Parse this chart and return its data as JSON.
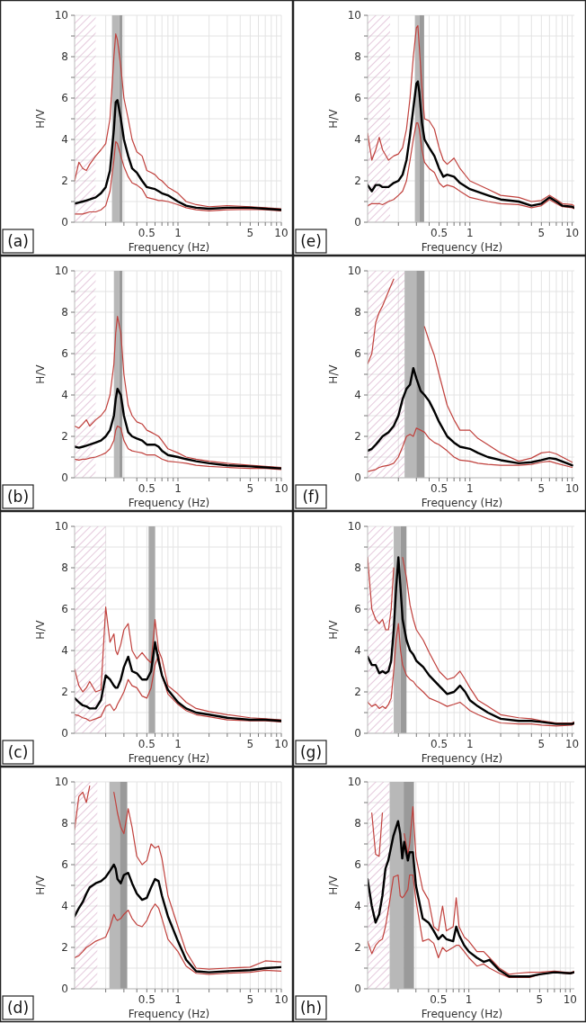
{
  "chart_data": [
    {
      "type": "line",
      "title": "(a)",
      "xlabel": "Frequency (Hz)",
      "ylabel": "H/V",
      "log": "x",
      "grid": true,
      "xlim": [
        0.1,
        10
      ],
      "ylim": [
        0,
        10
      ],
      "xticks": [
        {
          "value": 0.2,
          "label": null
        },
        {
          "value": 0.3,
          "label": null
        },
        {
          "value": 0.4,
          "label": null
        },
        0.5,
        {
          "value": 0.6,
          "label": null
        },
        {
          "value": 0.7,
          "label": null
        },
        {
          "value": 0.8,
          "label": null
        },
        {
          "value": 0.9,
          "label": null
        },
        1,
        {
          "value": 2,
          "label": null
        },
        {
          "value": 3,
          "label": null
        },
        {
          "value": 4,
          "label": null
        },
        5,
        {
          "value": 6,
          "label": null
        },
        {
          "value": 7,
          "label": null
        },
        {
          "value": 8,
          "label": null
        },
        {
          "value": 9,
          "label": null
        },
        10
      ],
      "yticks": [
        0,
        {
          "value": 1,
          "label": null
        },
        2,
        {
          "value": 3,
          "label": null
        },
        4,
        {
          "value": 5,
          "label": null
        },
        6,
        {
          "value": 7,
          "label": null
        },
        8,
        {
          "value": 9,
          "label": null
        },
        10
      ],
      "bands": [
        {
          "axis": "x",
          "from": 0.1,
          "to": 0.16,
          "label": null,
          "color": "#d4a5c4"
        },
        {
          "axis": "x",
          "from": 0.23,
          "to": 0.27,
          "label": null,
          "color": "#b8b8b8"
        },
        {
          "axis": "x",
          "from": 0.27,
          "to": 0.29,
          "label": null,
          "color": "#9a9a9a"
        }
      ],
      "x": [
        0.1,
        0.11,
        0.12,
        0.13,
        0.14,
        0.16,
        0.18,
        0.2,
        0.22,
        0.24,
        0.25,
        0.26,
        0.28,
        0.3,
        0.33,
        0.36,
        0.4,
        0.45,
        0.5,
        0.55,
        0.6,
        0.65,
        0.7,
        0.8,
        1,
        1.2,
        1.5,
        2,
        3,
        5,
        7,
        10
      ],
      "series": [
        {
          "color": "#c0403c",
          "values": [
            2.0,
            2.9,
            2.6,
            2.5,
            2.8,
            3.2,
            3.5,
            3.8,
            5.0,
            8.0,
            9.1,
            8.8,
            7.5,
            6.0,
            5.0,
            4.0,
            3.4,
            3.2,
            2.5,
            2.4,
            2.3,
            2.1,
            2.0,
            1.7,
            1.4,
            1.0,
            0.85,
            0.75,
            0.8,
            0.75,
            0.7,
            0.65
          ]
        },
        {
          "color": "#c0403c",
          "values": [
            0.4,
            0.4,
            0.4,
            0.45,
            0.5,
            0.5,
            0.6,
            0.8,
            1.5,
            3.0,
            3.9,
            3.8,
            3.2,
            2.7,
            2.2,
            1.9,
            1.8,
            1.6,
            1.2,
            1.15,
            1.1,
            1.05,
            1.05,
            1.0,
            0.85,
            0.7,
            0.6,
            0.55,
            0.6,
            0.62,
            0.6,
            0.55
          ]
        },
        {
          "color": "#000000",
          "values": [
            0.9,
            0.95,
            1.0,
            1.05,
            1.1,
            1.2,
            1.4,
            1.7,
            2.5,
            4.5,
            5.8,
            5.9,
            5.0,
            4.0,
            3.2,
            2.6,
            2.4,
            2.0,
            1.7,
            1.65,
            1.6,
            1.5,
            1.4,
            1.3,
            1.0,
            0.8,
            0.7,
            0.65,
            0.7,
            0.7,
            0.65,
            0.6
          ]
        }
      ]
    },
    {
      "type": "line",
      "title": "(e)",
      "xlabel": "Frequency (Hz)",
      "ylabel": "H/V",
      "log": "x",
      "grid": true,
      "xlim": [
        0.1,
        10.5
      ],
      "ylim": [
        0,
        10
      ],
      "xticks": [
        {
          "value": 0.2,
          "label": null
        },
        {
          "value": 0.3,
          "label": null
        },
        {
          "value": 0.4,
          "label": null
        },
        0.5,
        {
          "value": 0.6,
          "label": null
        },
        {
          "value": 0.7,
          "label": null
        },
        {
          "value": 0.8,
          "label": null
        },
        {
          "value": 0.9,
          "label": null
        },
        1,
        {
          "value": 2,
          "label": null
        },
        {
          "value": 3,
          "label": null
        },
        {
          "value": 4,
          "label": null
        },
        5,
        {
          "value": 6,
          "label": null
        },
        {
          "value": 7,
          "label": null
        },
        {
          "value": 8,
          "label": null
        },
        {
          "value": 9,
          "label": null
        },
        10
      ],
      "yticks": [
        0,
        {
          "value": 1,
          "label": null
        },
        2,
        {
          "value": 3,
          "label": null
        },
        4,
        {
          "value": 5,
          "label": null
        },
        6,
        {
          "value": 7,
          "label": null
        },
        8,
        {
          "value": 9,
          "label": null
        },
        10
      ],
      "bands": [
        {
          "axis": "x",
          "from": 0.1,
          "to": 0.166,
          "label": null,
          "color": "#d4a5c4"
        },
        {
          "axis": "x",
          "from": 0.29,
          "to": 0.32,
          "label": null,
          "color": "#b8b8b8"
        },
        {
          "axis": "x",
          "from": 0.32,
          "to": 0.357,
          "label": null,
          "color": "#9a9a9a"
        }
      ],
      "x": [
        0.1,
        0.11,
        0.12,
        0.13,
        0.14,
        0.16,
        0.18,
        0.2,
        0.22,
        0.24,
        0.26,
        0.28,
        0.3,
        0.31,
        0.32,
        0.34,
        0.36,
        0.4,
        0.45,
        0.5,
        0.55,
        0.6,
        0.7,
        0.8,
        1,
        1.5,
        2,
        3,
        4,
        5,
        6,
        7,
        8,
        10,
        10.5
      ],
      "series": [
        {
          "color": "#c0403c",
          "values": [
            4.3,
            3.0,
            3.5,
            4.1,
            3.5,
            3.0,
            3.2,
            3.3,
            3.6,
            4.5,
            6.0,
            8.0,
            9.4,
            9.5,
            8.5,
            6.5,
            5.0,
            4.9,
            4.5,
            3.6,
            3.0,
            2.8,
            3.1,
            2.6,
            2.0,
            1.6,
            1.3,
            1.2,
            1.0,
            1.05,
            1.3,
            1.1,
            0.9,
            0.85,
            0.8
          ]
        },
        {
          "color": "#c0403c",
          "values": [
            0.8,
            0.9,
            0.9,
            0.9,
            0.85,
            1.0,
            1.1,
            1.3,
            1.5,
            2.0,
            3.0,
            4.0,
            4.8,
            4.8,
            4.5,
            3.5,
            2.9,
            2.6,
            2.4,
            1.9,
            1.7,
            1.8,
            1.7,
            1.5,
            1.2,
            1.0,
            0.9,
            0.85,
            0.7,
            0.8,
            1.1,
            0.9,
            0.75,
            0.7,
            0.65
          ]
        },
        {
          "color": "#000000",
          "values": [
            1.8,
            1.5,
            1.8,
            1.8,
            1.7,
            1.7,
            1.9,
            2.0,
            2.3,
            3.0,
            4.2,
            5.5,
            6.7,
            6.8,
            6.3,
            4.8,
            4.0,
            3.6,
            3.2,
            2.6,
            2.2,
            2.3,
            2.2,
            1.9,
            1.6,
            1.3,
            1.1,
            1.0,
            0.8,
            0.9,
            1.2,
            1.0,
            0.8,
            0.75,
            0.7
          ]
        }
      ]
    },
    {
      "type": "line",
      "title": "(b)",
      "xlabel": "Frequency (Hz)",
      "ylabel": "H/V",
      "log": "x",
      "grid": true,
      "xlim": [
        0.1,
        10
      ],
      "ylim": [
        0,
        10
      ],
      "xticks": [
        {
          "value": 0.2,
          "label": null
        },
        {
          "value": 0.3,
          "label": null
        },
        {
          "value": 0.4,
          "label": null
        },
        0.5,
        {
          "value": 0.6,
          "label": null
        },
        {
          "value": 0.7,
          "label": null
        },
        {
          "value": 0.8,
          "label": null
        },
        {
          "value": 0.9,
          "label": null
        },
        1,
        {
          "value": 2,
          "label": null
        },
        {
          "value": 3,
          "label": null
        },
        {
          "value": 4,
          "label": null
        },
        5,
        {
          "value": 6,
          "label": null
        },
        {
          "value": 7,
          "label": null
        },
        {
          "value": 8,
          "label": null
        },
        {
          "value": 9,
          "label": null
        },
        10
      ],
      "yticks": [
        0,
        {
          "value": 1,
          "label": null
        },
        2,
        {
          "value": 3,
          "label": null
        },
        4,
        {
          "value": 5,
          "label": null
        },
        6,
        {
          "value": 7,
          "label": null
        },
        8,
        {
          "value": 9,
          "label": null
        },
        10
      ],
      "bands": [
        {
          "axis": "x",
          "from": 0.1,
          "to": 0.16,
          "label": null,
          "color": "#d4a5c4"
        },
        {
          "axis": "x",
          "from": 0.24,
          "to": 0.27,
          "label": null,
          "color": "#b8b8b8"
        },
        {
          "axis": "x",
          "from": 0.27,
          "to": 0.29,
          "label": null,
          "color": "#9a9a9a"
        }
      ],
      "x": [
        0.1,
        0.11,
        0.12,
        0.13,
        0.14,
        0.16,
        0.18,
        0.2,
        0.22,
        0.24,
        0.25,
        0.26,
        0.28,
        0.3,
        0.33,
        0.36,
        0.4,
        0.45,
        0.5,
        0.55,
        0.6,
        0.65,
        0.7,
        0.8,
        1,
        1.2,
        1.5,
        2,
        3,
        5,
        7,
        10
      ],
      "series": [
        {
          "color": "#c0403c",
          "values": [
            2.5,
            2.4,
            2.6,
            2.8,
            2.5,
            2.8,
            3.0,
            3.3,
            4.0,
            5.5,
            7.0,
            7.8,
            7.0,
            5.0,
            3.5,
            3.0,
            2.7,
            2.6,
            2.3,
            2.2,
            2.1,
            2.0,
            1.8,
            1.4,
            1.2,
            1.0,
            0.9,
            0.8,
            0.7,
            0.6,
            0.55,
            0.5
          ]
        },
        {
          "color": "#c0403c",
          "values": [
            0.9,
            0.85,
            0.9,
            0.9,
            0.95,
            1.0,
            1.1,
            1.2,
            1.4,
            1.8,
            2.3,
            2.5,
            2.4,
            1.8,
            1.4,
            1.3,
            1.25,
            1.2,
            1.1,
            1.1,
            1.1,
            1.0,
            0.9,
            0.8,
            0.75,
            0.7,
            0.6,
            0.55,
            0.5,
            0.45,
            0.45,
            0.4
          ]
        },
        {
          "color": "#000000",
          "values": [
            1.5,
            1.45,
            1.5,
            1.55,
            1.6,
            1.7,
            1.8,
            2.0,
            2.3,
            3.0,
            3.8,
            4.3,
            4.0,
            3.0,
            2.2,
            2.0,
            1.9,
            1.8,
            1.6,
            1.6,
            1.6,
            1.5,
            1.3,
            1.1,
            1.0,
            0.9,
            0.8,
            0.7,
            0.6,
            0.55,
            0.5,
            0.45
          ]
        }
      ]
    },
    {
      "type": "line",
      "title": "(f)",
      "xlabel": "Frequency (Hz)",
      "ylabel": "H/V",
      "log": "x",
      "grid": true,
      "xlim": [
        0.1,
        10.5
      ],
      "ylim": [
        0,
        10
      ],
      "xticks": [
        {
          "value": 0.2,
          "label": null
        },
        {
          "value": 0.3,
          "label": null
        },
        {
          "value": 0.4,
          "label": null
        },
        0.5,
        {
          "value": 0.6,
          "label": null
        },
        {
          "value": 0.7,
          "label": null
        },
        {
          "value": 0.8,
          "label": null
        },
        {
          "value": 0.9,
          "label": null
        },
        1,
        {
          "value": 2,
          "label": null
        },
        {
          "value": 3,
          "label": null
        },
        {
          "value": 4,
          "label": null
        },
        5,
        {
          "value": 6,
          "label": null
        },
        {
          "value": 7,
          "label": null
        },
        {
          "value": 8,
          "label": null
        },
        {
          "value": 9,
          "label": null
        },
        10
      ],
      "yticks": [
        0,
        {
          "value": 1,
          "label": null
        },
        2,
        {
          "value": 3,
          "label": null
        },
        4,
        {
          "value": 5,
          "label": null
        },
        6,
        {
          "value": 7,
          "label": null
        },
        8,
        {
          "value": 9,
          "label": null
        },
        10
      ],
      "bands": [
        {
          "axis": "x",
          "from": 0.1,
          "to": 0.23,
          "label": null,
          "color": "#d4a5c4"
        },
        {
          "axis": "x",
          "from": 0.23,
          "to": 0.3,
          "label": null,
          "color": "#b8b8b8"
        },
        {
          "axis": "x",
          "from": 0.3,
          "to": 0.36,
          "label": null,
          "color": "#9a9a9a"
        }
      ],
      "x": [
        0.1,
        0.11,
        0.12,
        0.13,
        0.14,
        0.16,
        0.18,
        0.2,
        0.22,
        0.24,
        0.26,
        0.28,
        0.3,
        0.33,
        0.36,
        0.4,
        0.45,
        0.5,
        0.6,
        0.7,
        0.8,
        1,
        1.2,
        1.5,
        2,
        3,
        4,
        5,
        6,
        7,
        10
      ],
      "series": [
        {
          "color": "#c0403c",
          "values": [
            5.5,
            6.0,
            7.5,
            8.0,
            8.3,
            9.0,
            9.6,
            null,
            null,
            null,
            null,
            null,
            null,
            null,
            7.3,
            6.6,
            5.9,
            5.0,
            3.5,
            2.8,
            2.3,
            2.3,
            1.9,
            1.6,
            1.2,
            0.8,
            0.95,
            1.2,
            1.25,
            1.15,
            0.75
          ]
        },
        {
          "color": "#c0403c",
          "values": [
            0.3,
            0.35,
            0.4,
            0.5,
            0.55,
            0.6,
            0.7,
            1.0,
            1.5,
            2.0,
            2.1,
            2.0,
            2.4,
            2.3,
            2.2,
            1.9,
            1.7,
            1.6,
            1.3,
            1.0,
            0.85,
            0.8,
            0.7,
            0.65,
            0.6,
            0.6,
            0.65,
            0.75,
            0.8,
            0.7,
            0.5
          ]
        },
        {
          "color": "#000000",
          "values": [
            1.3,
            1.4,
            1.6,
            1.8,
            2.0,
            2.2,
            2.5,
            3.0,
            3.8,
            4.3,
            4.5,
            5.3,
            4.8,
            4.2,
            4.0,
            3.7,
            3.2,
            2.7,
            2.0,
            1.7,
            1.5,
            1.4,
            1.2,
            1.0,
            0.85,
            0.7,
            0.75,
            0.85,
            0.95,
            0.9,
            0.6
          ]
        }
      ]
    },
    {
      "type": "line",
      "title": "(c)",
      "xlabel": "Frequency (Hz)",
      "ylabel": "H/V",
      "log": "x",
      "grid": true,
      "xlim": [
        0.1,
        10
      ],
      "ylim": [
        0,
        10
      ],
      "xticks": [
        {
          "value": 0.2,
          "label": null
        },
        {
          "value": 0.3,
          "label": null
        },
        {
          "value": 0.4,
          "label": null
        },
        0.5,
        {
          "value": 0.6,
          "label": null
        },
        {
          "value": 0.7,
          "label": null
        },
        {
          "value": 0.8,
          "label": null
        },
        {
          "value": 0.9,
          "label": null
        },
        1,
        {
          "value": 2,
          "label": null
        },
        {
          "value": 3,
          "label": null
        },
        {
          "value": 4,
          "label": null
        },
        5,
        {
          "value": 6,
          "label": null
        },
        {
          "value": 7,
          "label": null
        },
        {
          "value": 8,
          "label": null
        },
        {
          "value": 9,
          "label": null
        },
        10
      ],
      "yticks": [
        0,
        {
          "value": 1,
          "label": null
        },
        2,
        {
          "value": 3,
          "label": null
        },
        4,
        {
          "value": 5,
          "label": null
        },
        6,
        {
          "value": 7,
          "label": null
        },
        8,
        {
          "value": 9,
          "label": null
        },
        10
      ],
      "bands": [
        {
          "axis": "x",
          "from": 0.1,
          "to": 0.2,
          "label": null,
          "color": "#d4a5c4"
        },
        {
          "axis": "x",
          "from": 0.52,
          "to": 0.6,
          "label": null,
          "color": "#a8a8a8"
        }
      ],
      "x": [
        0.1,
        0.11,
        0.12,
        0.13,
        0.14,
        0.16,
        0.18,
        0.2,
        0.22,
        0.24,
        0.25,
        0.26,
        0.28,
        0.3,
        0.33,
        0.36,
        0.4,
        0.45,
        0.5,
        0.55,
        0.6,
        0.65,
        0.7,
        0.8,
        1,
        1.2,
        1.5,
        2,
        3,
        5,
        7,
        10
      ],
      "series": [
        {
          "color": "#c0403c",
          "values": [
            3.1,
            2.3,
            2.0,
            2.2,
            2.5,
            2.0,
            2.1,
            6.1,
            4.4,
            4.8,
            4.0,
            3.8,
            4.3,
            5.0,
            5.3,
            4.0,
            3.6,
            3.9,
            3.6,
            3.4,
            5.5,
            4.0,
            3.6,
            2.3,
            1.9,
            1.5,
            1.2,
            1.05,
            0.9,
            0.75,
            0.7,
            0.65
          ]
        },
        {
          "color": "#c0403c",
          "values": [
            0.9,
            0.85,
            0.75,
            0.7,
            0.6,
            0.7,
            0.8,
            1.3,
            1.4,
            1.1,
            1.2,
            1.4,
            1.7,
            2.0,
            2.6,
            2.3,
            2.2,
            1.8,
            1.7,
            2.2,
            3.3,
            3.8,
            2.8,
            1.9,
            1.4,
            1.1,
            0.9,
            0.8,
            0.65,
            0.6,
            0.6,
            0.55
          ]
        },
        {
          "color": "#000000",
          "values": [
            1.7,
            1.5,
            1.35,
            1.3,
            1.2,
            1.2,
            1.6,
            2.8,
            2.6,
            2.3,
            2.2,
            2.2,
            2.6,
            3.2,
            3.7,
            3.0,
            2.9,
            2.6,
            2.6,
            3.0,
            4.4,
            3.5,
            2.8,
            2.1,
            1.5,
            1.2,
            1.0,
            0.9,
            0.75,
            0.65,
            0.65,
            0.6
          ]
        }
      ]
    },
    {
      "type": "line",
      "title": "(g)",
      "xlabel": "Frequency (Hz)",
      "ylabel": "H/V",
      "log": "x",
      "grid": true,
      "xlim": [
        0.1,
        10.5
      ],
      "ylim": [
        0,
        10
      ],
      "xticks": [
        {
          "value": 0.2,
          "label": null
        },
        {
          "value": 0.3,
          "label": null
        },
        {
          "value": 0.4,
          "label": null
        },
        0.5,
        {
          "value": 0.6,
          "label": null
        },
        {
          "value": 0.7,
          "label": null
        },
        {
          "value": 0.8,
          "label": null
        },
        {
          "value": 0.9,
          "label": null
        },
        1,
        {
          "value": 2,
          "label": null
        },
        {
          "value": 3,
          "label": null
        },
        {
          "value": 4,
          "label": null
        },
        5,
        {
          "value": 6,
          "label": null
        },
        {
          "value": 7,
          "label": null
        },
        {
          "value": 8,
          "label": null
        },
        {
          "value": 9,
          "label": null
        },
        10
      ],
      "yticks": [
        0,
        {
          "value": 1,
          "label": null
        },
        2,
        {
          "value": 3,
          "label": null
        },
        4,
        {
          "value": 5,
          "label": null
        },
        6,
        {
          "value": 7,
          "label": null
        },
        8,
        {
          "value": 9,
          "label": null
        },
        10
      ],
      "bands": [
        {
          "axis": "x",
          "from": 0.1,
          "to": 0.176,
          "label": null,
          "color": "#d4a5c4"
        },
        {
          "axis": "x",
          "from": 0.18,
          "to": 0.21,
          "label": null,
          "color": "#b8b8b8"
        },
        {
          "axis": "x",
          "from": 0.21,
          "to": 0.24,
          "label": null,
          "color": "#9a9a9a"
        }
      ],
      "x": [
        0.1,
        0.11,
        0.12,
        0.13,
        0.14,
        0.15,
        0.16,
        0.17,
        0.18,
        0.19,
        0.2,
        0.21,
        0.22,
        0.24,
        0.26,
        0.28,
        0.3,
        0.35,
        0.4,
        0.5,
        0.6,
        0.7,
        0.8,
        0.9,
        1,
        1.2,
        1.5,
        2,
        3,
        4,
        5,
        7,
        10,
        10.5
      ],
      "series": [
        {
          "color": "#c0403c",
          "values": [
            8.5,
            6.0,
            5.5,
            5.3,
            5.5,
            5.0,
            5.0,
            6.0,
            8.0,
            null,
            null,
            null,
            8.5,
            7.5,
            6.2,
            5.5,
            5.0,
            4.5,
            3.9,
            3.0,
            2.6,
            2.7,
            3.0,
            2.6,
            2.2,
            1.6,
            1.3,
            0.9,
            0.75,
            0.7,
            0.6,
            0.5,
            0.5,
            0.55
          ]
        },
        {
          "color": "#c0403c",
          "values": [
            1.5,
            1.3,
            1.4,
            1.2,
            1.3,
            1.2,
            1.4,
            1.7,
            3.0,
            4.5,
            5.3,
            4.0,
            3.3,
            2.8,
            2.6,
            2.5,
            2.3,
            2.0,
            1.7,
            1.5,
            1.3,
            1.4,
            1.5,
            1.3,
            1.1,
            0.9,
            0.7,
            0.5,
            0.45,
            0.45,
            0.4,
            0.35,
            0.4,
            0.45
          ]
        },
        {
          "color": "#000000",
          "values": [
            3.7,
            3.3,
            3.3,
            2.9,
            3.0,
            2.9,
            3.0,
            3.5,
            5.0,
            7.0,
            8.5,
            7.0,
            5.5,
            4.5,
            4.0,
            3.8,
            3.5,
            3.2,
            2.8,
            2.3,
            1.9,
            2.0,
            2.3,
            2.0,
            1.6,
            1.3,
            1.0,
            0.7,
            0.6,
            0.6,
            0.55,
            0.45,
            0.45,
            0.5
          ]
        }
      ]
    },
    {
      "type": "line",
      "title": "(d)",
      "xlabel": "Frequency (Hz)",
      "ylabel": "H/V",
      "log": "x",
      "grid": true,
      "xlim": [
        0.1,
        10
      ],
      "ylim": [
        0,
        10
      ],
      "xticks": [
        {
          "value": 0.2,
          "label": null
        },
        {
          "value": 0.3,
          "label": null
        },
        {
          "value": 0.4,
          "label": null
        },
        0.5,
        {
          "value": 0.6,
          "label": null
        },
        {
          "value": 0.7,
          "label": null
        },
        {
          "value": 0.8,
          "label": null
        },
        {
          "value": 0.9,
          "label": null
        },
        1,
        {
          "value": 2,
          "label": null
        },
        {
          "value": 3,
          "label": null
        },
        {
          "value": 4,
          "label": null
        },
        5,
        {
          "value": 6,
          "label": null
        },
        {
          "value": 7,
          "label": null
        },
        {
          "value": 8,
          "label": null
        },
        {
          "value": 9,
          "label": null
        },
        10
      ],
      "yticks": [
        0,
        {
          "value": 1,
          "label": null
        },
        2,
        {
          "value": 3,
          "label": null
        },
        4,
        {
          "value": 5,
          "label": null
        },
        6,
        {
          "value": 7,
          "label": null
        },
        8,
        {
          "value": 9,
          "label": null
        },
        10
      ],
      "bands": [
        {
          "axis": "x",
          "from": 0.1,
          "to": 0.166,
          "label": null,
          "color": "#d4a5c4"
        },
        {
          "axis": "x",
          "from": 0.217,
          "to": 0.274,
          "label": null,
          "color": "#b8b8b8"
        },
        {
          "axis": "x",
          "from": 0.274,
          "to": 0.323,
          "label": null,
          "color": "#9a9a9a"
        }
      ],
      "x": [
        0.1,
        0.11,
        0.12,
        0.13,
        0.14,
        0.16,
        0.18,
        0.2,
        0.22,
        0.24,
        0.25,
        0.26,
        0.28,
        0.3,
        0.33,
        0.36,
        0.4,
        0.45,
        0.5,
        0.55,
        0.6,
        0.65,
        0.7,
        0.8,
        1,
        1.2,
        1.5,
        2,
        3,
        5,
        7,
        10
      ],
      "series": [
        {
          "color": "#c0403c",
          "values": [
            7.7,
            9.3,
            9.5,
            9.0,
            9.8,
            null,
            null,
            null,
            null,
            9.5,
            9.0,
            8.5,
            7.8,
            7.5,
            8.7,
            7.8,
            6.4,
            6.0,
            6.2,
            7.0,
            6.8,
            6.9,
            6.3,
            4.5,
            3.0,
            1.8,
            1.0,
            0.95,
            1.0,
            1.05,
            1.35,
            1.3
          ]
        },
        {
          "color": "#c0403c",
          "values": [
            1.5,
            1.6,
            1.8,
            2.0,
            2.1,
            2.3,
            2.4,
            2.5,
            3.0,
            3.6,
            3.4,
            3.3,
            3.4,
            3.6,
            3.8,
            3.4,
            3.1,
            3.0,
            3.3,
            3.8,
            4.1,
            3.9,
            3.4,
            2.4,
            1.8,
            1.1,
            0.75,
            0.7,
            0.75,
            0.8,
            0.9,
            0.85
          ]
        },
        {
          "color": "#000000",
          "values": [
            3.5,
            3.9,
            4.2,
            4.6,
            4.9,
            5.1,
            5.2,
            5.4,
            5.7,
            6.0,
            5.8,
            5.3,
            5.1,
            5.5,
            5.6,
            5.1,
            4.6,
            4.3,
            4.4,
            4.9,
            5.3,
            5.2,
            4.5,
            3.5,
            2.3,
            1.4,
            0.85,
            0.8,
            0.85,
            0.9,
            1.0,
            1.05
          ]
        }
      ]
    },
    {
      "type": "line",
      "title": "(h)",
      "xlabel": "Frequency (Hz)",
      "ylabel": "H/V",
      "log": "x",
      "grid": true,
      "xlim": [
        0.1,
        11
      ],
      "ylim": [
        0,
        10
      ],
      "xticks": [
        {
          "value": 0.2,
          "label": null
        },
        {
          "value": 0.3,
          "label": null
        },
        {
          "value": 0.4,
          "label": null
        },
        0.5,
        {
          "value": 0.6,
          "label": null
        },
        {
          "value": 0.7,
          "label": null
        },
        {
          "value": 0.8,
          "label": null
        },
        {
          "value": 0.9,
          "label": null
        },
        1,
        {
          "value": 2,
          "label": null
        },
        {
          "value": 3,
          "label": null
        },
        {
          "value": 4,
          "label": null
        },
        5,
        {
          "value": 6,
          "label": null
        },
        {
          "value": 7,
          "label": null
        },
        {
          "value": 8,
          "label": null
        },
        {
          "value": 9,
          "label": null
        },
        10
      ],
      "yticks": [
        0,
        {
          "value": 1,
          "label": null
        },
        2,
        {
          "value": 3,
          "label": null
        },
        4,
        {
          "value": 5,
          "label": null
        },
        6,
        {
          "value": 7,
          "label": null
        },
        8,
        {
          "value": 9,
          "label": null
        },
        10
      ],
      "bands": [
        {
          "axis": "x",
          "from": 0.1,
          "to": 0.165,
          "label": null,
          "color": "#d4a5c4"
        },
        {
          "axis": "x",
          "from": 0.165,
          "to": 0.227,
          "label": null,
          "color": "#b8b8b8"
        },
        {
          "axis": "x",
          "from": 0.227,
          "to": 0.287,
          "label": null,
          "color": "#9a9a9a"
        }
      ],
      "x": [
        0.1,
        0.11,
        0.12,
        0.13,
        0.14,
        0.15,
        0.16,
        0.18,
        0.2,
        0.21,
        0.22,
        0.23,
        0.25,
        0.26,
        0.28,
        0.3,
        0.35,
        0.4,
        0.45,
        0.5,
        0.55,
        0.6,
        0.7,
        0.75,
        0.8,
        0.9,
        1,
        1.2,
        1.4,
        1.6,
        2,
        2.5,
        3,
        4,
        5,
        7,
        10,
        11
      ],
      "series": [
        {
          "color": "#c0403c",
          "values": [
            null,
            8.5,
            6.5,
            6.4,
            8.5,
            null,
            null,
            null,
            null,
            null,
            null,
            7.5,
            6.5,
            7.0,
            8.8,
            6.4,
            4.8,
            4.3,
            3.0,
            2.8,
            4.0,
            2.8,
            3.0,
            4.4,
            3.0,
            2.5,
            2.3,
            1.8,
            1.8,
            1.5,
            1.0,
            0.7,
            0.75,
            0.8,
            0.8,
            0.85,
            0.78,
            0.85
          ]
        },
        {
          "color": "#c0403c",
          "values": [
            2.3,
            1.7,
            2.1,
            2.3,
            2.4,
            3.0,
            3.8,
            5.4,
            5.5,
            4.5,
            4.4,
            4.5,
            4.8,
            5.5,
            5.5,
            4.3,
            2.3,
            2.4,
            2.2,
            1.5,
            2.0,
            1.8,
            2.0,
            2.1,
            2.1,
            1.8,
            1.5,
            1.1,
            1.2,
            1.0,
            0.75,
            0.55,
            0.55,
            0.55,
            0.7,
            0.8,
            0.72,
            0.78
          ]
        },
        {
          "color": "#000000",
          "values": [
            5.3,
            4.0,
            3.2,
            3.6,
            4.5,
            5.8,
            6.2,
            7.4,
            8.1,
            7.5,
            6.3,
            7.1,
            6.2,
            6.6,
            6.6,
            5.0,
            3.4,
            3.2,
            2.8,
            2.4,
            2.6,
            2.4,
            2.3,
            3.0,
            2.6,
            2.1,
            1.8,
            1.5,
            1.3,
            1.4,
            0.9,
            0.6,
            0.6,
            0.6,
            0.7,
            0.8,
            0.75,
            0.8
          ]
        }
      ]
    }
  ]
}
